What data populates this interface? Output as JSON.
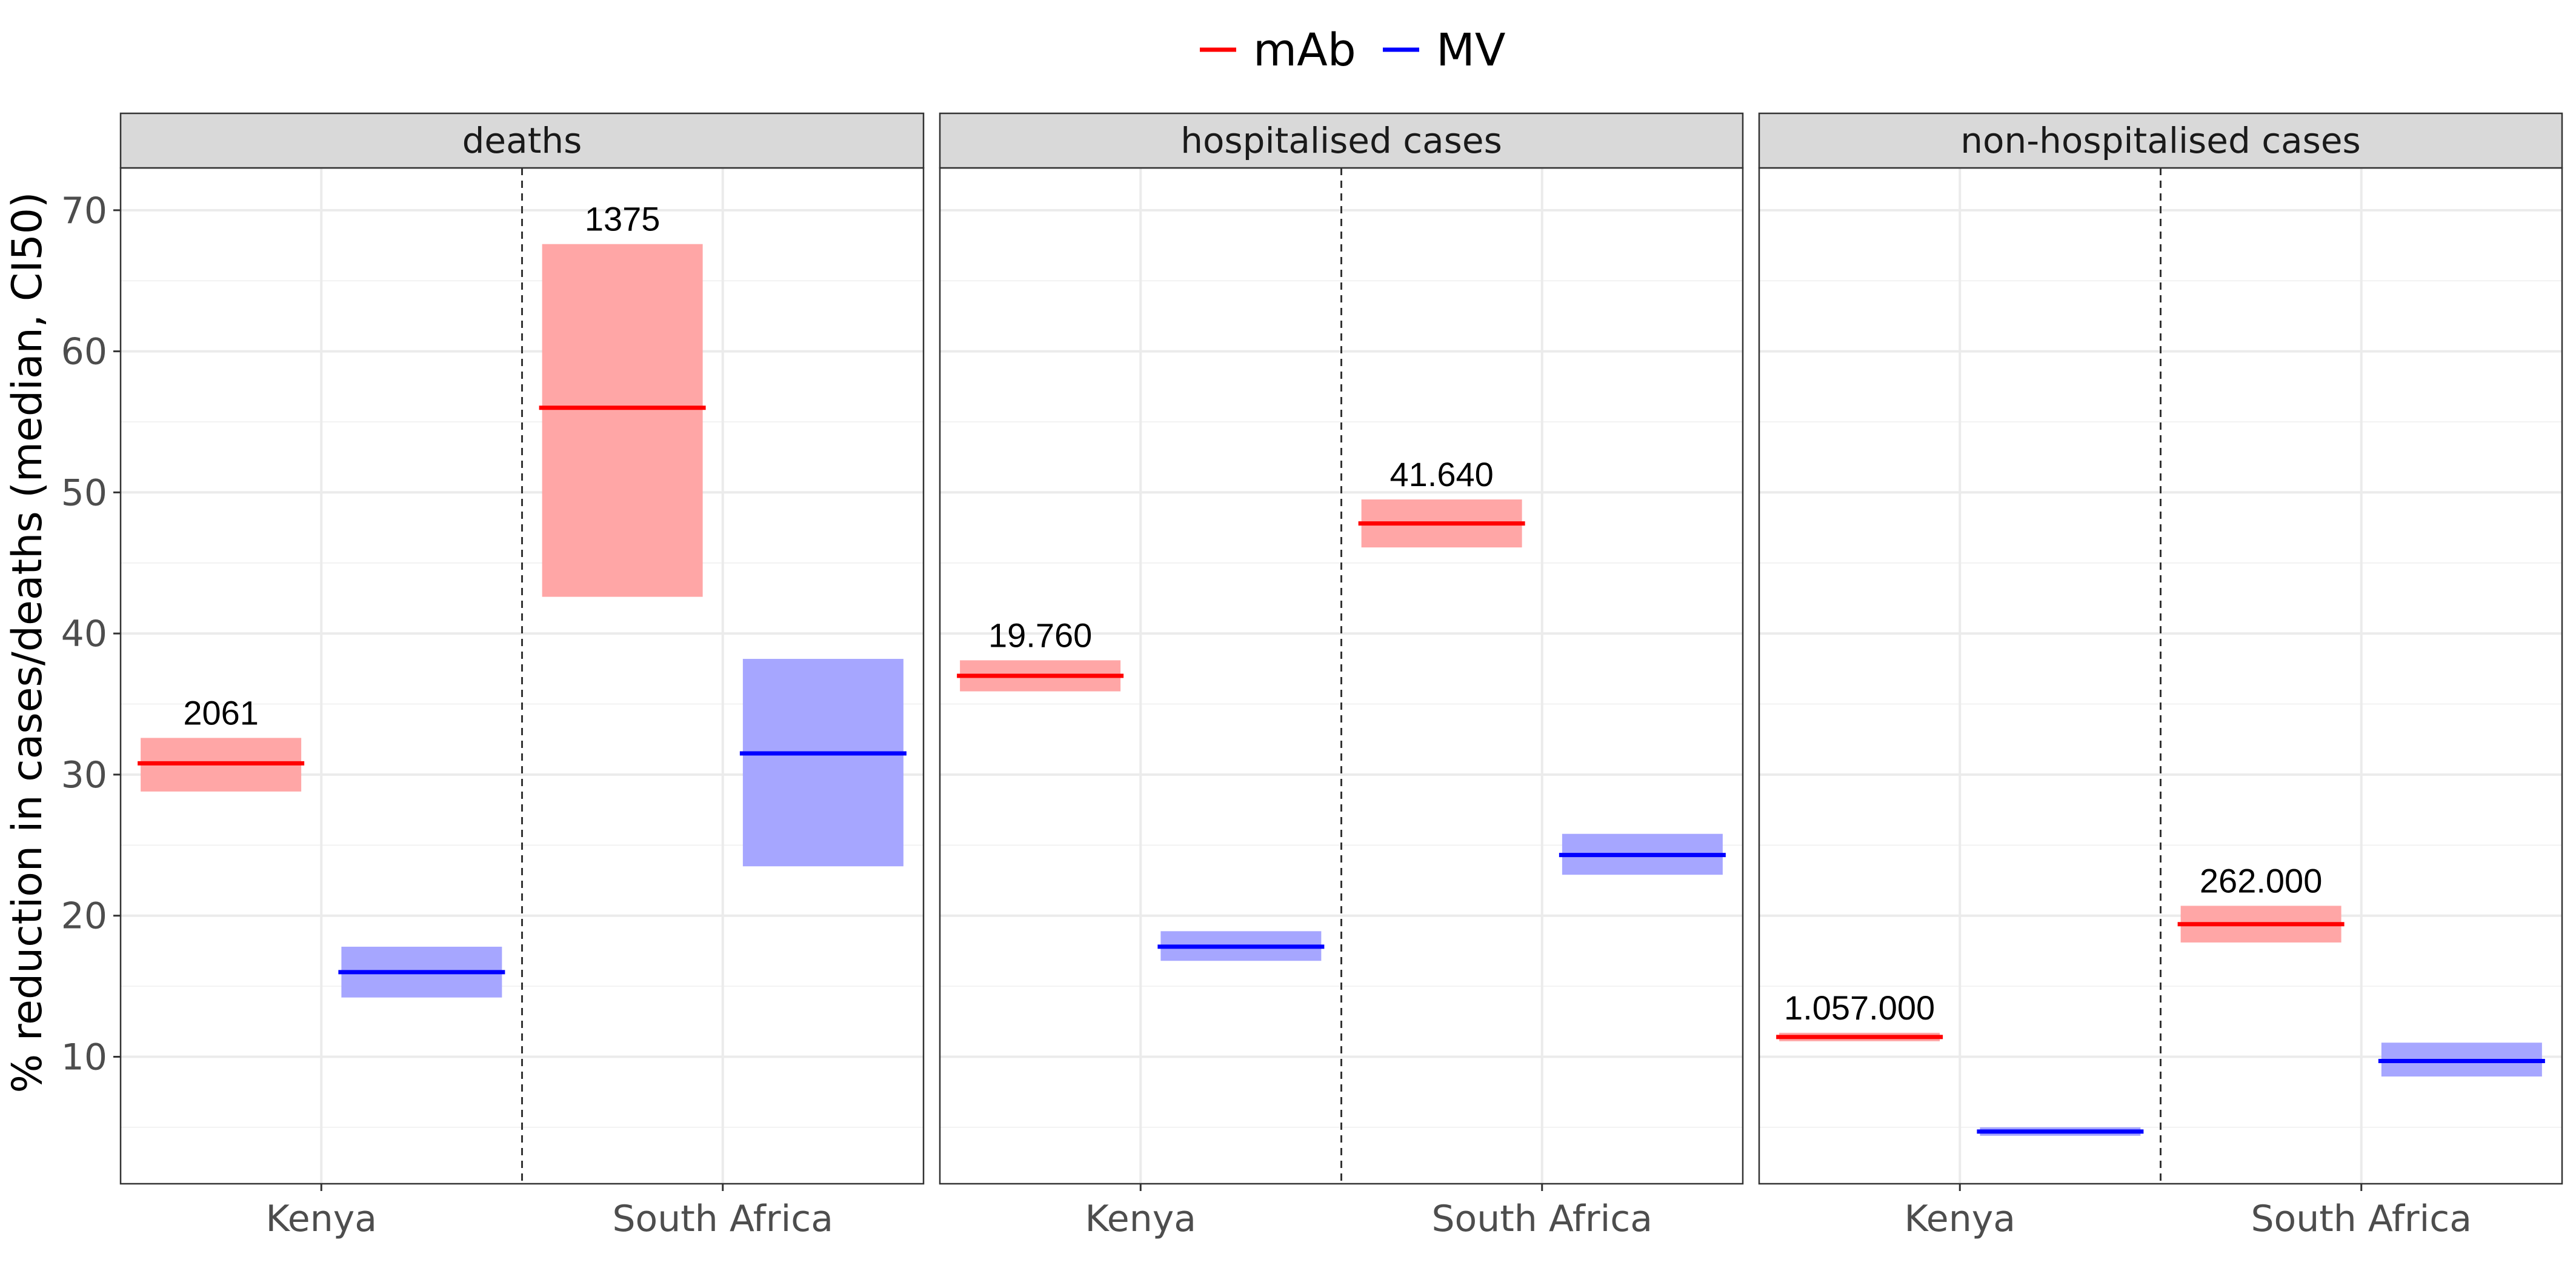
{
  "chart_data": {
    "type": "crossbar",
    "ylabel": "% reduction in cases/deaths (median, CI50)",
    "ylim": [
      1,
      73
    ],
    "yticks": [
      10,
      20,
      30,
      40,
      50,
      60,
      70
    ],
    "categories": [
      "Kenya",
      "South Africa"
    ],
    "legend": {
      "position": "top",
      "entries": [
        {
          "name": "mAb",
          "color": "#ff0000"
        },
        {
          "name": "MV",
          "color": "#0000ff"
        }
      ]
    },
    "fill_colors": {
      "mAb": "#ffa6a6",
      "MV": "#a6a6ff"
    },
    "panels": [
      {
        "title": "deaths",
        "bars": [
          {
            "country": "Kenya",
            "series": "mAb",
            "median": 30.8,
            "low": 28.8,
            "high": 32.6,
            "label": "2061"
          },
          {
            "country": "Kenya",
            "series": "MV",
            "median": 16.0,
            "low": 14.2,
            "high": 17.8,
            "label": ""
          },
          {
            "country": "South Africa",
            "series": "mAb",
            "median": 56.0,
            "low": 42.6,
            "high": 67.6,
            "label": "1375"
          },
          {
            "country": "South Africa",
            "series": "MV",
            "median": 31.5,
            "low": 23.5,
            "high": 38.2,
            "label": ""
          }
        ]
      },
      {
        "title": "hospitalised cases",
        "bars": [
          {
            "country": "Kenya",
            "series": "mAb",
            "median": 37.0,
            "low": 35.9,
            "high": 38.1,
            "label": "19.760"
          },
          {
            "country": "Kenya",
            "series": "MV",
            "median": 17.8,
            "low": 16.8,
            "high": 18.9,
            "label": ""
          },
          {
            "country": "South Africa",
            "series": "mAb",
            "median": 47.8,
            "low": 46.1,
            "high": 49.5,
            "label": "41.640"
          },
          {
            "country": "South Africa",
            "series": "MV",
            "median": 24.3,
            "low": 22.9,
            "high": 25.8,
            "label": ""
          }
        ]
      },
      {
        "title": "non-hospitalised cases",
        "bars": [
          {
            "country": "Kenya",
            "series": "mAb",
            "median": 11.4,
            "low": 11.1,
            "high": 11.7,
            "label": "1.057.000"
          },
          {
            "country": "Kenya",
            "series": "MV",
            "median": 4.7,
            "low": 4.4,
            "high": 5.0,
            "label": ""
          },
          {
            "country": "South Africa",
            "series": "mAb",
            "median": 19.4,
            "low": 18.1,
            "high": 20.7,
            "label": "262.000"
          },
          {
            "country": "South Africa",
            "series": "MV",
            "median": 9.7,
            "low": 8.6,
            "high": 11.0,
            "label": ""
          }
        ]
      }
    ]
  }
}
